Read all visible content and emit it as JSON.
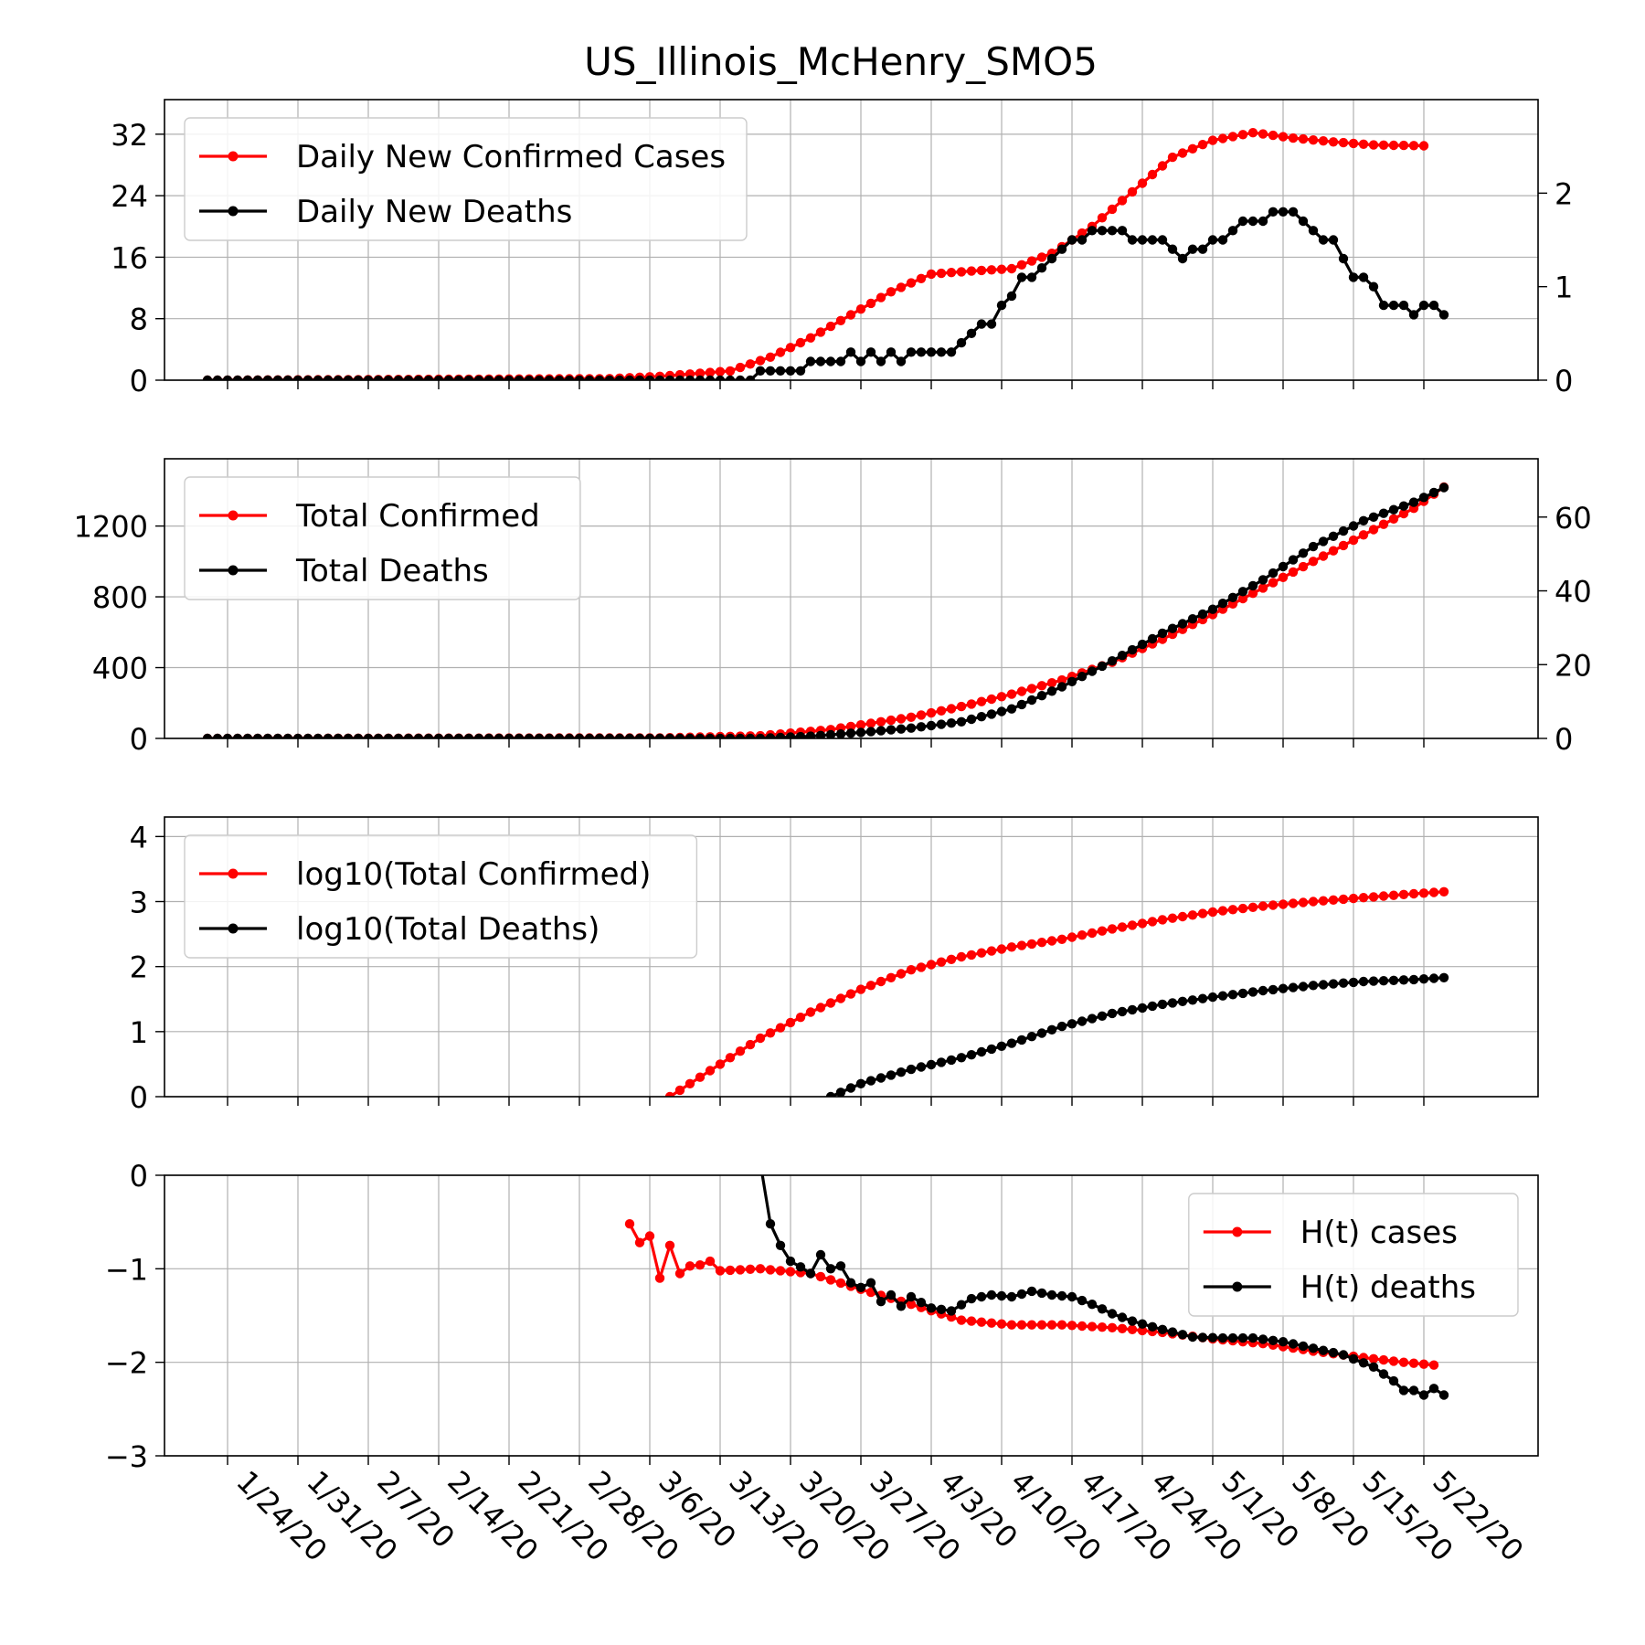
{
  "title": "US_Illinois_McHenry_SMO5",
  "colors": {
    "cases": "#ff0000",
    "deaths": "#000000",
    "grid": "#b0b0b0"
  },
  "chart_data": [
    {
      "type": "line",
      "panel": 1,
      "start_date": "2020-01-22",
      "x_tick_labels": [
        "1/24/20",
        "1/31/20",
        "2/7/20",
        "2/14/20",
        "2/21/20",
        "2/28/20",
        "3/6/20",
        "3/13/20",
        "3/20/20",
        "3/27/20",
        "4/3/20",
        "4/10/20",
        "4/17/20",
        "4/24/20",
        "5/1/20",
        "5/8/20",
        "5/15/20",
        "5/22/20"
      ],
      "yticks_left": [
        0,
        8,
        16,
        24,
        32
      ],
      "ylim_left": [
        0,
        36.5
      ],
      "yticks_right": [
        0,
        1,
        2
      ],
      "ylim_right": [
        0,
        3.0
      ],
      "grid": true,
      "legend": "top-left",
      "series": [
        {
          "name": "Daily New Confirmed Cases",
          "color": "#ff0000",
          "axis": "left",
          "keypoints": [
            [
              0,
              0
            ],
            [
              40,
              0.2
            ],
            [
              45,
              0.5
            ],
            [
              52,
              1.2
            ],
            [
              56,
              3
            ],
            [
              60,
              5.5
            ],
            [
              64,
              8.5
            ],
            [
              68,
              11.5
            ],
            [
              72,
              13.8
            ],
            [
              76,
              14.2
            ],
            [
              80,
              14.5
            ],
            [
              84,
              16.5
            ],
            [
              88,
              20
            ],
            [
              92,
              24.5
            ],
            [
              96,
              29
            ],
            [
              100,
              31.2
            ],
            [
              104,
              32.2
            ],
            [
              108,
              31.5
            ],
            [
              112,
              31
            ],
            [
              116,
              30.6
            ],
            [
              121,
              30.5
            ]
          ]
        },
        {
          "name": "Daily New Deaths",
          "color": "#000000",
          "axis": "right",
          "keypoints": [
            [
              0,
              0
            ],
            [
              54,
              0
            ],
            [
              55,
              0.1
            ],
            [
              59,
              0.1
            ],
            [
              60,
              0.2
            ],
            [
              63,
              0.2
            ],
            [
              64,
              0.3
            ],
            [
              65,
              0.2
            ],
            [
              66,
              0.3
            ],
            [
              67,
              0.2
            ],
            [
              68,
              0.3
            ],
            [
              69,
              0.2
            ],
            [
              70,
              0.3
            ],
            [
              71,
              0.3
            ],
            [
              74,
              0.3
            ],
            [
              75,
              0.4
            ],
            [
              76,
              0.5
            ],
            [
              77,
              0.6
            ],
            [
              78,
              0.6
            ],
            [
              79,
              0.8
            ],
            [
              80,
              0.9
            ],
            [
              81,
              1.1
            ],
            [
              82,
              1.1
            ],
            [
              83,
              1.2
            ],
            [
              84,
              1.3
            ],
            [
              85,
              1.4
            ],
            [
              86,
              1.5
            ],
            [
              87,
              1.5
            ],
            [
              88,
              1.6
            ],
            [
              91,
              1.6
            ],
            [
              92,
              1.5
            ],
            [
              95,
              1.5
            ],
            [
              96,
              1.4
            ],
            [
              97,
              1.3
            ],
            [
              98,
              1.4
            ],
            [
              99,
              1.4
            ],
            [
              100,
              1.5
            ],
            [
              101,
              1.5
            ],
            [
              102,
              1.6
            ],
            [
              103,
              1.7
            ],
            [
              105,
              1.7
            ],
            [
              106,
              1.8
            ],
            [
              108,
              1.8
            ],
            [
              109,
              1.7
            ],
            [
              110,
              1.6
            ],
            [
              111,
              1.5
            ],
            [
              112,
              1.5
            ],
            [
              113,
              1.3
            ],
            [
              114,
              1.1
            ],
            [
              115,
              1.1
            ],
            [
              116,
              1.0
            ],
            [
              117,
              0.8
            ],
            [
              118,
              0.8
            ],
            [
              119,
              0.8
            ],
            [
              120,
              0.7
            ],
            [
              121,
              0.8
            ],
            [
              122,
              0.8
            ],
            [
              123,
              0.7
            ]
          ]
        }
      ]
    },
    {
      "type": "line",
      "panel": 2,
      "yticks_left": [
        0,
        400,
        800,
        1200
      ],
      "ylim_left": [
        0,
        1580
      ],
      "yticks_right": [
        0,
        20,
        40,
        60
      ],
      "ylim_right": [
        0,
        75.8
      ],
      "grid": true,
      "legend": "top-left",
      "series": [
        {
          "name": "Total Confirmed",
          "color": "#ff0000",
          "axis": "left",
          "keypoints": [
            [
              0,
              0
            ],
            [
              45,
              3
            ],
            [
              55,
              15
            ],
            [
              62,
              50
            ],
            [
              70,
              120
            ],
            [
              75,
              180
            ],
            [
              80,
              250
            ],
            [
              85,
              330
            ],
            [
              90,
              430
            ],
            [
              95,
              560
            ],
            [
              100,
              700
            ],
            [
              105,
              850
            ],
            [
              110,
              1000
            ],
            [
              115,
              1150
            ],
            [
              120,
              1300
            ],
            [
              123,
              1420
            ]
          ]
        },
        {
          "name": "Total Deaths",
          "color": "#000000",
          "axis": "right",
          "keypoints": [
            [
              0,
              0
            ],
            [
              55,
              0
            ],
            [
              60,
              0.6
            ],
            [
              65,
              1.6
            ],
            [
              70,
              2.8
            ],
            [
              75,
              4.5
            ],
            [
              80,
              8
            ],
            [
              85,
              14
            ],
            [
              90,
              21
            ],
            [
              95,
              28.5
            ],
            [
              100,
              35
            ],
            [
              105,
              43
            ],
            [
              110,
              52
            ],
            [
              115,
              59
            ],
            [
              120,
              64
            ],
            [
              123,
              68
            ]
          ]
        }
      ]
    },
    {
      "type": "line",
      "panel": 3,
      "yticks_left": [
        0,
        1,
        2,
        3,
        4
      ],
      "ylim_left": [
        0,
        4.3
      ],
      "grid": true,
      "legend": "top-left",
      "series": [
        {
          "name": "log10(Total Confirmed)",
          "color": "#ff0000",
          "axis": "left",
          "keypoints": [
            [
              46,
              0
            ],
            [
              50,
              0.4
            ],
            [
              55,
              0.9
            ],
            [
              60,
              1.3
            ],
            [
              65,
              1.65
            ],
            [
              70,
              1.95
            ],
            [
              75,
              2.15
            ],
            [
              80,
              2.3
            ],
            [
              85,
              2.42
            ],
            [
              90,
              2.58
            ],
            [
              95,
              2.72
            ],
            [
              100,
              2.84
            ],
            [
              105,
              2.93
            ],
            [
              110,
              3.0
            ],
            [
              115,
              3.06
            ],
            [
              120,
              3.12
            ],
            [
              123,
              3.15
            ]
          ]
        },
        {
          "name": "log10(Total Deaths)",
          "color": "#000000",
          "axis": "left",
          "keypoints": [
            [
              62,
              0
            ],
            [
              65,
              0.2
            ],
            [
              70,
              0.42
            ],
            [
              75,
              0.6
            ],
            [
              80,
              0.82
            ],
            [
              85,
              1.08
            ],
            [
              90,
              1.28
            ],
            [
              95,
              1.42
            ],
            [
              100,
              1.53
            ],
            [
              105,
              1.63
            ],
            [
              110,
              1.71
            ],
            [
              115,
              1.77
            ],
            [
              120,
              1.8
            ],
            [
              123,
              1.83
            ]
          ]
        }
      ]
    },
    {
      "type": "line",
      "panel": 4,
      "yticks_left": [
        0,
        -1,
        -2,
        -3
      ],
      "ylim_left": [
        -3,
        0
      ],
      "grid": true,
      "legend": "top-right",
      "series": [
        {
          "name": "H(t) cases",
          "color": "#ff0000",
          "axis": "left",
          "keypoints": [
            [
              42,
              -0.52
            ],
            [
              43,
              -0.72
            ],
            [
              44,
              -0.65
            ],
            [
              45,
              -1.1
            ],
            [
              46,
              -0.75
            ],
            [
              47,
              -1.05
            ],
            [
              48,
              -0.97
            ],
            [
              49,
              -0.96
            ],
            [
              50,
              -0.92
            ],
            [
              51,
              -1.02
            ],
            [
              55,
              -1.0
            ],
            [
              60,
              -1.05
            ],
            [
              65,
              -1.22
            ],
            [
              70,
              -1.38
            ],
            [
              75,
              -1.55
            ],
            [
              80,
              -1.6
            ],
            [
              85,
              -1.6
            ],
            [
              90,
              -1.63
            ],
            [
              95,
              -1.68
            ],
            [
              100,
              -1.75
            ],
            [
              105,
              -1.8
            ],
            [
              110,
              -1.88
            ],
            [
              115,
              -1.95
            ],
            [
              119,
              -2.0
            ],
            [
              122,
              -2.03
            ]
          ]
        },
        {
          "name": "H(t) deaths",
          "color": "#000000",
          "axis": "left",
          "keypoints": [
            [
              55.2,
              0
            ],
            [
              56,
              -0.52
            ],
            [
              57,
              -0.75
            ],
            [
              58,
              -0.92
            ],
            [
              59,
              -0.98
            ],
            [
              60,
              -1.05
            ],
            [
              61,
              -0.85
            ],
            [
              62,
              -1.0
            ],
            [
              63,
              -0.97
            ],
            [
              64,
              -1.15
            ],
            [
              65,
              -1.2
            ],
            [
              66,
              -1.15
            ],
            [
              67,
              -1.35
            ],
            [
              68,
              -1.28
            ],
            [
              69,
              -1.4
            ],
            [
              70,
              -1.3
            ],
            [
              72,
              -1.42
            ],
            [
              74,
              -1.45
            ],
            [
              76,
              -1.32
            ],
            [
              78,
              -1.28
            ],
            [
              80,
              -1.3
            ],
            [
              82,
              -1.24
            ],
            [
              84,
              -1.28
            ],
            [
              86,
              -1.3
            ],
            [
              88,
              -1.38
            ],
            [
              90,
              -1.48
            ],
            [
              92,
              -1.56
            ],
            [
              95,
              -1.65
            ],
            [
              98,
              -1.73
            ],
            [
              101,
              -1.74
            ],
            [
              104,
              -1.74
            ],
            [
              107,
              -1.78
            ],
            [
              110,
              -1.85
            ],
            [
              113,
              -1.92
            ],
            [
              116,
              -2.05
            ],
            [
              118,
              -2.2
            ],
            [
              119,
              -2.3
            ],
            [
              120,
              -2.3
            ],
            [
              121,
              -2.35
            ],
            [
              122,
              -2.28
            ],
            [
              123,
              -2.35
            ]
          ]
        }
      ]
    }
  ]
}
